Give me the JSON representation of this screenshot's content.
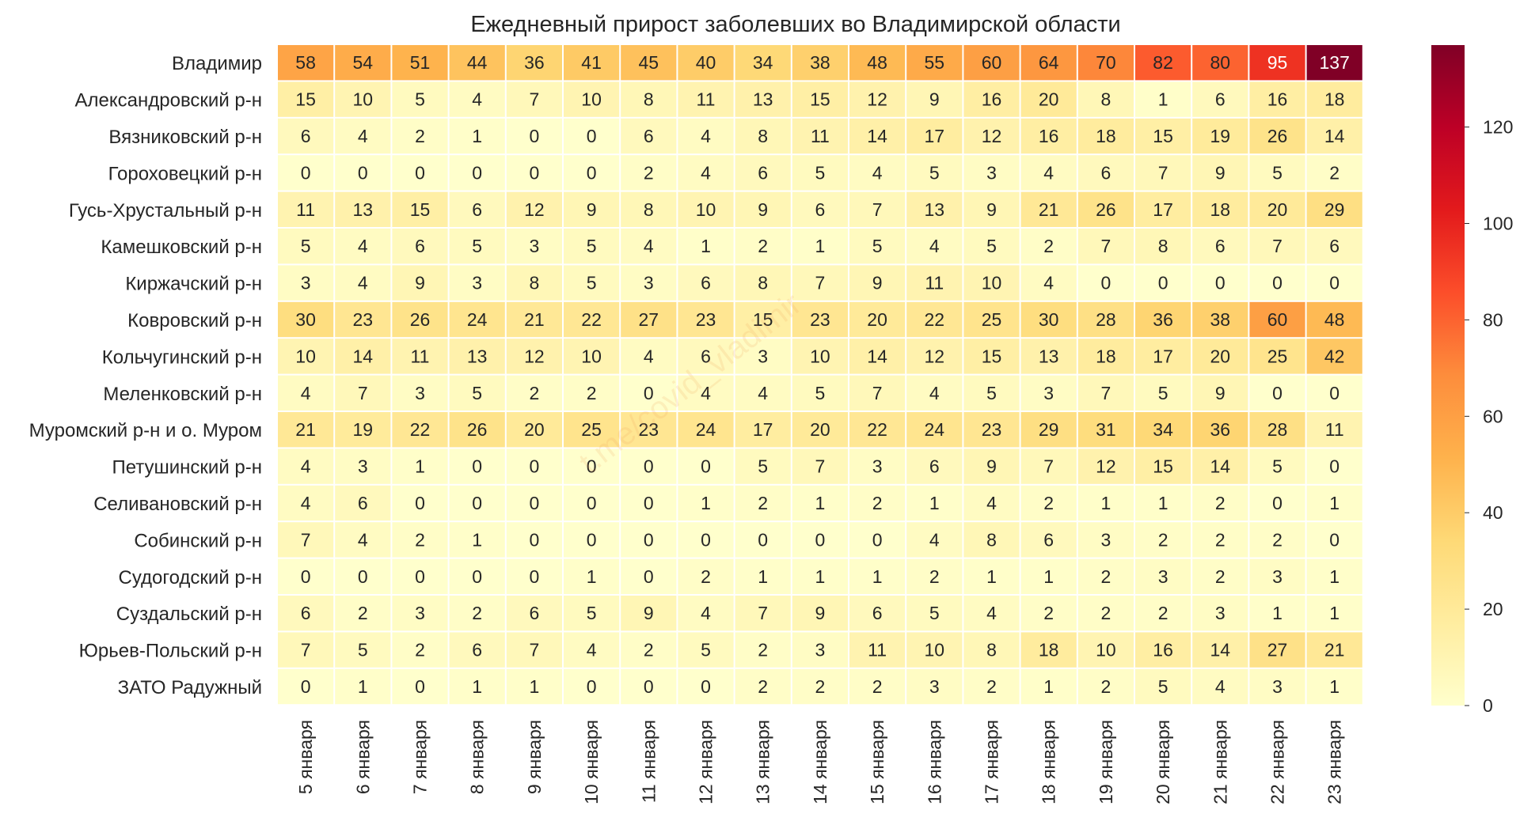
{
  "chart_data": {
    "type": "heatmap",
    "title": "Ежедневный прирост заболевших во Владимирской области",
    "watermark": "t.me/covid_vladimir",
    "rows": [
      "Владимир",
      "Александровский р-н",
      "Вязниковский р-н",
      "Гороховецкий р-н",
      "Гусь-Хрустальный р-н",
      "Камешковский р-н",
      "Киржачский р-н",
      "Ковровский р-н",
      "Кольчугинский р-н",
      "Меленковский р-н",
      "Муромский р-н и о. Муром",
      "Петушинский р-н",
      "Селивановский р-н",
      "Собинский р-н",
      "Судогодский р-н",
      "Суздальский р-н",
      "Юрьев-Польский р-н",
      "ЗАТО Радужный"
    ],
    "columns": [
      "5 января",
      "6 января",
      "7 января",
      "8 января",
      "9 января",
      "10 января",
      "11 января",
      "12 января",
      "13 января",
      "14 января",
      "15 января",
      "16 января",
      "17 января",
      "18 января",
      "19 января",
      "20 января",
      "21 января",
      "22 января",
      "23 января"
    ],
    "values": [
      [
        58,
        54,
        51,
        44,
        36,
        41,
        45,
        40,
        34,
        38,
        48,
        55,
        60,
        64,
        70,
        82,
        80,
        95,
        137
      ],
      [
        15,
        10,
        5,
        4,
        7,
        10,
        8,
        11,
        13,
        15,
        12,
        9,
        16,
        20,
        8,
        1,
        6,
        16,
        18
      ],
      [
        6,
        4,
        2,
        1,
        0,
        0,
        6,
        4,
        8,
        11,
        14,
        17,
        12,
        16,
        18,
        15,
        19,
        26,
        14
      ],
      [
        0,
        0,
        0,
        0,
        0,
        0,
        2,
        4,
        6,
        5,
        4,
        5,
        3,
        4,
        6,
        7,
        9,
        5,
        2
      ],
      [
        11,
        13,
        15,
        6,
        12,
        9,
        8,
        10,
        9,
        6,
        7,
        13,
        9,
        21,
        26,
        17,
        18,
        20,
        29
      ],
      [
        5,
        4,
        6,
        5,
        3,
        5,
        4,
        1,
        2,
        1,
        5,
        4,
        5,
        2,
        7,
        8,
        6,
        7,
        6
      ],
      [
        3,
        4,
        9,
        3,
        8,
        5,
        3,
        6,
        8,
        7,
        9,
        11,
        10,
        4,
        0,
        0,
        0,
        0,
        0
      ],
      [
        30,
        23,
        26,
        24,
        21,
        22,
        27,
        23,
        15,
        23,
        20,
        22,
        25,
        30,
        28,
        36,
        38,
        60,
        48
      ],
      [
        10,
        14,
        11,
        13,
        12,
        10,
        4,
        6,
        3,
        10,
        14,
        12,
        15,
        13,
        18,
        17,
        20,
        25,
        42
      ],
      [
        4,
        7,
        3,
        5,
        2,
        2,
        0,
        4,
        4,
        5,
        7,
        4,
        5,
        3,
        7,
        5,
        9,
        0,
        0
      ],
      [
        21,
        19,
        22,
        26,
        20,
        25,
        23,
        24,
        17,
        20,
        22,
        24,
        23,
        29,
        31,
        34,
        36,
        28,
        11
      ],
      [
        4,
        3,
        1,
        0,
        0,
        0,
        0,
        0,
        5,
        7,
        3,
        6,
        9,
        7,
        12,
        15,
        14,
        5,
        0
      ],
      [
        4,
        6,
        0,
        0,
        0,
        0,
        0,
        1,
        2,
        1,
        2,
        1,
        4,
        2,
        1,
        1,
        2,
        0,
        1
      ],
      [
        7,
        4,
        2,
        1,
        0,
        0,
        0,
        0,
        0,
        0,
        0,
        4,
        8,
        6,
        3,
        2,
        2,
        2,
        0
      ],
      [
        0,
        0,
        0,
        0,
        0,
        1,
        0,
        2,
        1,
        1,
        1,
        2,
        1,
        1,
        2,
        3,
        2,
        3,
        1
      ],
      [
        6,
        2,
        3,
        2,
        6,
        5,
        9,
        4,
        7,
        9,
        6,
        5,
        4,
        2,
        2,
        2,
        3,
        1,
        1
      ],
      [
        7,
        5,
        2,
        6,
        7,
        4,
        2,
        5,
        2,
        3,
        11,
        10,
        8,
        18,
        10,
        16,
        14,
        27,
        21
      ],
      [
        0,
        1,
        0,
        1,
        1,
        0,
        0,
        0,
        2,
        2,
        2,
        3,
        2,
        1,
        2,
        5,
        4,
        3,
        1
      ]
    ],
    "colormap": "YlOrRd",
    "colorbar": {
      "range": [
        0,
        137
      ],
      "ticks": [
        0,
        20,
        40,
        60,
        80,
        100,
        120
      ]
    },
    "grid": false
  }
}
